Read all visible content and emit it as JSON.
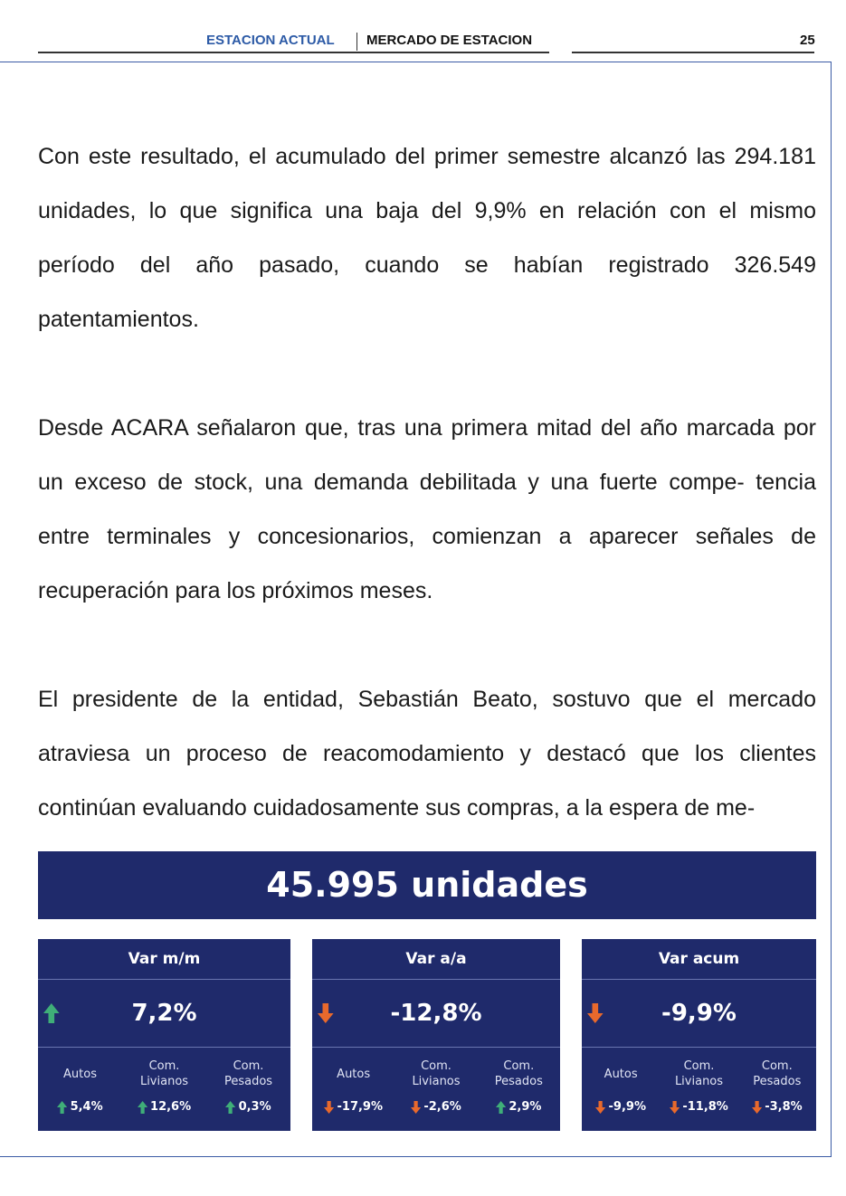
{
  "header": {
    "section": "ESTACION ACTUAL",
    "subsection": "MERCADO DE ESTACION",
    "page": "25"
  },
  "paragraphs": [
    "Con este resultado, el acumulado del primer semestre alcanzó las 294.181 unidades, lo que significa una baja del 9,9% en relación con el mismo período del año pasado, cuando se habían registrado 326.549 patentamientos.",
    "Desde ACARA señalaron que, tras una primera mitad del año marcada por un exceso de stock, una demanda debilitada y una fuerte compe- tencia entre terminales y concesionarios, comienzan a aparecer señales de recuperación para los próximos meses.",
    "El presidente de la entidad, Sebastián Beato, sostuvo que el mercado atraviesa un proceso de reacomodamiento y destacó que los clientes continúan evaluando cuidadosamente sus compras, a la espera de me-"
  ],
  "summary": {
    "headline": "45.995 unidades",
    "cards": [
      {
        "title": "Var m/m",
        "value": "7,2%",
        "breakdown": [
          {
            "label": "Autos",
            "value": "5,4%"
          },
          {
            "label": "Com. Livianos",
            "value": "12,6%"
          },
          {
            "label": "Com. Pesados",
            "value": "0,3%"
          }
        ]
      },
      {
        "title": "Var a/a",
        "value": "-12,8%",
        "breakdown": [
          {
            "label": "Autos",
            "value": "-17,9%"
          },
          {
            "label": "Com. Livianos",
            "value": "-2,6%"
          },
          {
            "label": "Com. Pesados",
            "value": "2,9%"
          }
        ]
      },
      {
        "title": "Var acum",
        "value": "-9,9%",
        "breakdown": [
          {
            "label": "Autos",
            "value": "-9,9%"
          },
          {
            "label": "Com. Livianos",
            "value": "-11,8%"
          },
          {
            "label": "Com. Pesados",
            "value": "-3,8%"
          }
        ]
      }
    ]
  }
}
